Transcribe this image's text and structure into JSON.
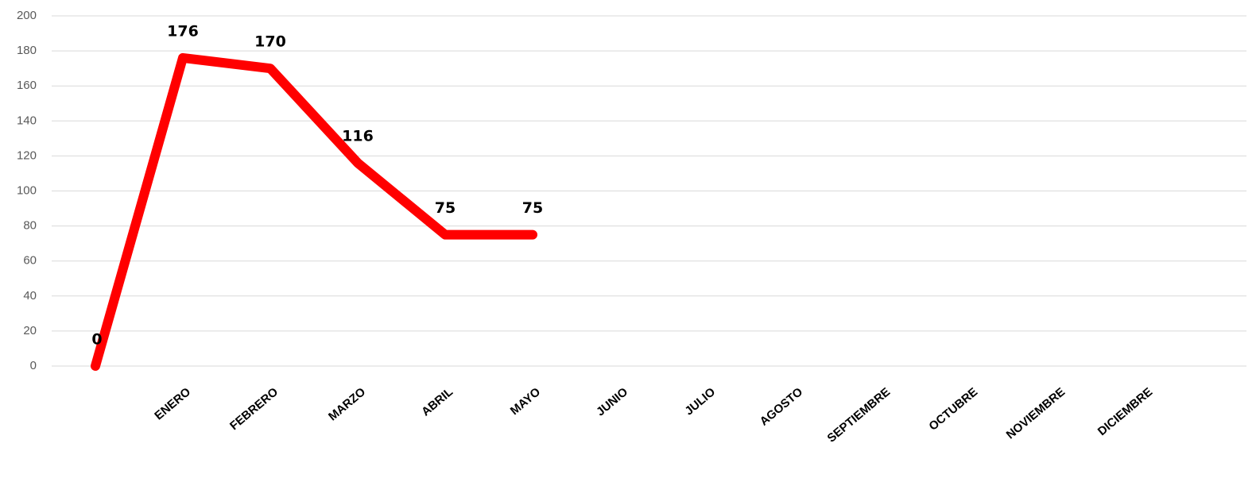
{
  "chart_data": {
    "type": "line",
    "categories": [
      null,
      "ENERO",
      "FEBRERO",
      "MARZO",
      "ABRIL",
      "MAYO",
      "JUNIO",
      "JULIO",
      "AGOSTO",
      "SEPTIEMBRE",
      "OCTUBRE",
      "NOVIEMBRE",
      "DICIEMBRE"
    ],
    "series": [
      {
        "color": "#ff0000",
        "values": [
          0,
          176,
          170,
          116,
          75,
          75,
          null,
          null,
          null,
          null,
          null,
          null,
          null
        ]
      }
    ],
    "ylim": [
      0,
      200
    ],
    "yticks": [
      0,
      20,
      40,
      60,
      80,
      100,
      120,
      140,
      160,
      180,
      200
    ],
    "grid": true
  }
}
